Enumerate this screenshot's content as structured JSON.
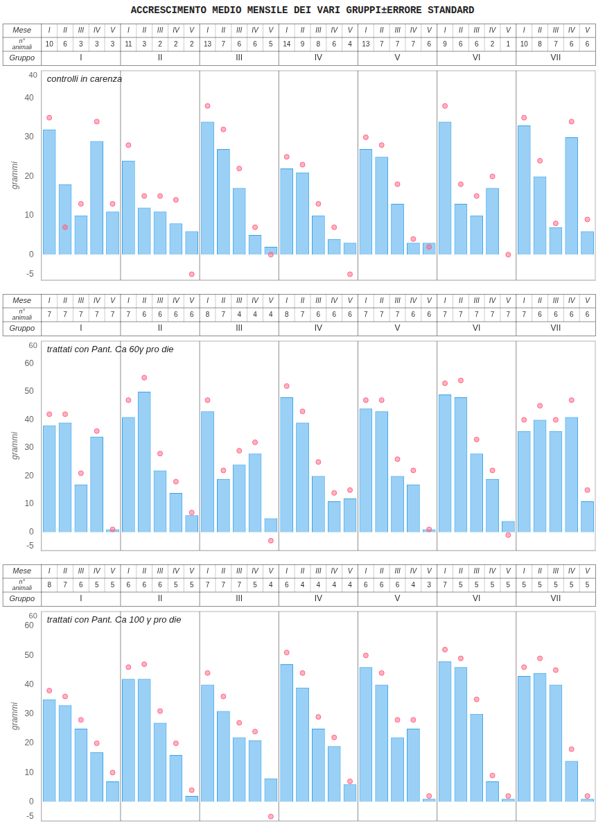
{
  "title": "ACCRESCIMENTO MEDIO MENSILE DEI VARI GRUPPI±ERRORE STANDARD",
  "chart_data": [
    {
      "type": "bar",
      "title": "controlli in carenza",
      "ylabel": "grammi",
      "categories": [
        "I",
        "II",
        "III",
        "IV",
        "V",
        "I",
        "II",
        "III",
        "IV",
        "V",
        "I",
        "II",
        "III",
        "IV",
        "V",
        "I",
        "II",
        "III",
        "IV",
        "V",
        "I",
        "II",
        "III",
        "IV",
        "V",
        "I",
        "II",
        "III",
        "IV",
        "V",
        "I",
        "II",
        "III",
        "IV",
        "V"
      ],
      "groups": [
        "I",
        "II",
        "III",
        "IV",
        "V",
        "VI",
        "VII"
      ],
      "row_labels": [
        "Mese",
        "n°\nanimali",
        "Gruppo"
      ],
      "n_animali": [
        10,
        6,
        3,
        3,
        3,
        11,
        3,
        2,
        2,
        2,
        13,
        7,
        6,
        6,
        5,
        14,
        9,
        8,
        6,
        4,
        13,
        7,
        7,
        7,
        6,
        9,
        6,
        6,
        2,
        1,
        10,
        8,
        7,
        6,
        6
      ],
      "ylim": [
        -6.5,
        47
      ],
      "yticks": [
        -5,
        0,
        10,
        20,
        30,
        40
      ],
      "ymax": 40,
      "grid": false,
      "series": [
        {
          "type": "bar",
          "values": [
            32,
            18,
            10,
            29,
            11,
            24,
            12,
            11,
            8,
            6,
            34,
            27,
            17,
            5,
            2,
            22,
            21,
            10,
            4,
            3,
            27,
            25,
            13,
            3,
            3,
            34,
            13,
            10,
            17,
            0,
            33,
            20,
            7,
            30,
            6
          ]
        },
        {
          "type": "scatter",
          "marker": "circle",
          "values": [
            35,
            7,
            13,
            34,
            13,
            28,
            15,
            15,
            14,
            -5,
            38,
            32,
            22,
            7,
            0,
            25,
            23,
            13,
            7,
            -5,
            30,
            28,
            18,
            4,
            2,
            38,
            18,
            15,
            20,
            0,
            35,
            24,
            8,
            34,
            9
          ]
        }
      ]
    },
    {
      "type": "bar",
      "title": "trattati con Pant. Ca 60γ pro die",
      "ylabel": "grammi",
      "categories": [
        "I",
        "II",
        "III",
        "IV",
        "V",
        "I",
        "II",
        "III",
        "IV",
        "V",
        "I",
        "II",
        "III",
        "IV",
        "V",
        "I",
        "II",
        "III",
        "IV",
        "V",
        "I",
        "II",
        "III",
        "IV",
        "V",
        "I",
        "II",
        "III",
        "IV",
        "V",
        "I",
        "II",
        "III",
        "IV",
        "V"
      ],
      "groups": [
        "I",
        "II",
        "III",
        "IV",
        "V",
        "VI",
        "VII"
      ],
      "row_labels": [
        "Mese",
        "n°\nanimali",
        "Gruppo"
      ],
      "n_animali": [
        7,
        7,
        7,
        7,
        7,
        7,
        6,
        6,
        6,
        6,
        8,
        7,
        4,
        4,
        4,
        8,
        7,
        6,
        6,
        6,
        7,
        7,
        7,
        6,
        6,
        7,
        7,
        7,
        7,
        7,
        7,
        6,
        6,
        6,
        6
      ],
      "ylim": [
        -6.5,
        68
      ],
      "yticks": [
        -5,
        0,
        10,
        20,
        30,
        40,
        50,
        60
      ],
      "ymax": 60,
      "grid": false,
      "series": [
        {
          "type": "bar",
          "values": [
            38,
            39,
            17,
            34,
            1,
            41,
            50,
            22,
            14,
            6,
            43,
            19,
            24,
            28,
            5,
            48,
            39,
            20,
            11,
            12,
            44,
            43,
            20,
            17,
            1,
            49,
            48,
            28,
            19,
            4,
            36,
            40,
            36,
            41,
            11
          ]
        },
        {
          "type": "scatter",
          "marker": "circle",
          "values": [
            42,
            42,
            21,
            36,
            1,
            47,
            55,
            28,
            18,
            7,
            47,
            22,
            29,
            32,
            -3,
            52,
            43,
            25,
            14,
            15,
            47,
            47,
            26,
            22,
            1,
            53,
            54,
            33,
            22,
            -1,
            40,
            45,
            40,
            47,
            15
          ]
        }
      ]
    },
    {
      "type": "bar",
      "title": "trattati con Pant. Ca 100 γ pro die",
      "ylabel": "grammi",
      "categories": [
        "I",
        "II",
        "III",
        "IV",
        "V",
        "I",
        "II",
        "III",
        "IV",
        "V",
        "I",
        "II",
        "III",
        "IV",
        "V",
        "I",
        "II",
        "III",
        "IV",
        "V",
        "I",
        "II",
        "III",
        "IV",
        "V",
        "I",
        "II",
        "III",
        "IV",
        "V",
        "I",
        "II",
        "III",
        "IV",
        "V"
      ],
      "groups": [
        "I",
        "II",
        "III",
        "IV",
        "V",
        "VI",
        "VII"
      ],
      "row_labels": [
        "Mese",
        "n°\nanimali",
        "Gruppo"
      ],
      "n_animali": [
        8,
        7,
        6,
        5,
        5,
        6,
        6,
        6,
        5,
        5,
        7,
        7,
        7,
        5,
        4,
        6,
        4,
        4,
        4,
        4,
        6,
        6,
        6,
        4,
        3,
        7,
        5,
        5,
        5,
        5,
        5,
        5,
        5,
        5,
        5
      ],
      "ylim": [
        -6.5,
        65
      ],
      "yticks": [
        -5,
        0,
        10,
        20,
        30,
        40,
        50,
        60
      ],
      "ymax": 60,
      "grid": false,
      "series": [
        {
          "type": "bar",
          "values": [
            35,
            33,
            25,
            17,
            7,
            42,
            42,
            27,
            16,
            2,
            40,
            31,
            22,
            21,
            8,
            47,
            39,
            25,
            19,
            6,
            46,
            40,
            22,
            25,
            1,
            48,
            46,
            30,
            7,
            1,
            43,
            44,
            40,
            14,
            1
          ]
        },
        {
          "type": "scatter",
          "marker": "circle",
          "values": [
            38,
            36,
            28,
            20,
            10,
            46,
            47,
            31,
            20,
            4,
            44,
            36,
            27,
            24,
            -5,
            51,
            44,
            29,
            22,
            7,
            50,
            44,
            28,
            28,
            2,
            52,
            49,
            35,
            9,
            2,
            46,
            49,
            45,
            18,
            2
          ]
        }
      ]
    }
  ]
}
